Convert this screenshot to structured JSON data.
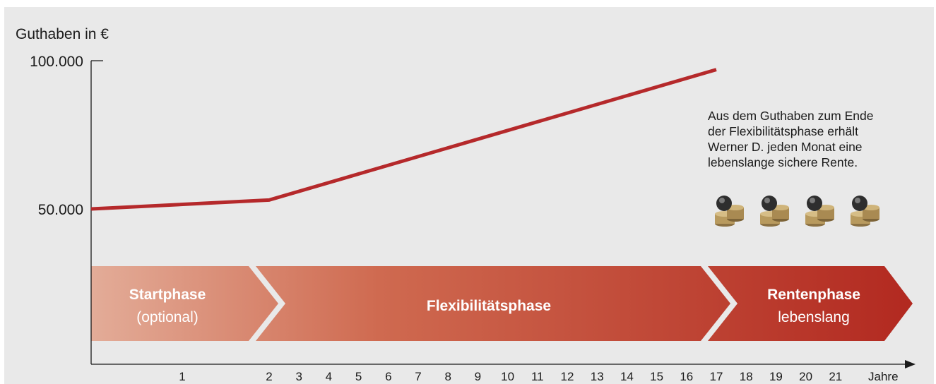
{
  "colors": {
    "background": "#e9e9e9",
    "line": "#b5292b",
    "axis": "#1a1a1a",
    "phase_start": "#e3ac98",
    "phase_end": "#b22920"
  },
  "chart_data": {
    "type": "line",
    "ylabel": "Guthaben in €",
    "xlabel": "Jahre",
    "y_ticks": [
      {
        "value": 100000,
        "label": "100.000"
      },
      {
        "value": 50000,
        "label": "50.000"
      }
    ],
    "x_ticks": [
      "1",
      "2",
      "3",
      "4",
      "5",
      "6",
      "7",
      "8",
      "9",
      "10",
      "11",
      "12",
      "13",
      "14",
      "15",
      "16",
      "17",
      "18",
      "19",
      "20",
      "21"
    ],
    "series": [
      {
        "x": [
          0,
          2,
          17
        ],
        "y": [
          50000,
          53000,
          97000
        ]
      }
    ],
    "phases": [
      {
        "title": "Startphase",
        "subtitle": "(optional)",
        "from": 0,
        "to": 2
      },
      {
        "title": "Flexibilitätsphase",
        "subtitle": "",
        "from": 2,
        "to": 17
      },
      {
        "title": "Rentenphase",
        "subtitle": "lebenslang",
        "from": 17,
        "to": 22
      }
    ]
  },
  "annotation": {
    "lines": [
      "Aus dem Guthaben zum Ende",
      "der Flexibilitätsphase erhält",
      "Werner D. jeden Monat eine",
      "lebenslange sichere Rente."
    ],
    "coin_icons": [
      "coin-stack-icon",
      "coin-stack-icon",
      "coin-stack-icon",
      "coin-stack-icon"
    ]
  }
}
